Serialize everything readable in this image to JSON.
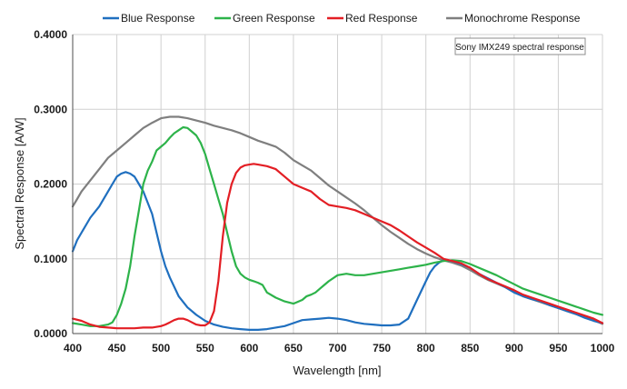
{
  "chart_data": {
    "type": "line",
    "xlabel": "Wavelength [nm]",
    "ylabel": "Spectral Response [A/W]",
    "xlim": [
      400,
      1000
    ],
    "ylim": [
      0,
      0.4
    ],
    "x_ticks": [
      "400",
      "450",
      "500",
      "550",
      "600",
      "650",
      "700",
      "750",
      "800",
      "850",
      "900",
      "950",
      "1000"
    ],
    "y_ticks": [
      "0.0000",
      "0.1000",
      "0.2000",
      "0.3000",
      "0.4000"
    ],
    "grid": true,
    "legend_position": "top",
    "annotation": "Sony IMX249 spectral response",
    "series": [
      {
        "name": "Blue Response",
        "color": "#1f6fbf",
        "x": [
          400,
          405,
          410,
          420,
          430,
          440,
          445,
          450,
          455,
          460,
          465,
          470,
          475,
          480,
          485,
          490,
          495,
          500,
          505,
          510,
          520,
          530,
          540,
          550,
          560,
          570,
          580,
          590,
          600,
          610,
          620,
          630,
          640,
          650,
          660,
          670,
          680,
          690,
          700,
          710,
          720,
          730,
          740,
          750,
          760,
          770,
          780,
          790,
          800,
          805,
          810,
          815,
          820,
          830,
          840,
          850,
          860,
          870,
          880,
          890,
          900,
          910,
          920,
          930,
          940,
          950,
          960,
          970,
          980,
          990,
          1000
        ],
        "y": [
          0.11,
          0.125,
          0.135,
          0.155,
          0.17,
          0.19,
          0.2,
          0.21,
          0.214,
          0.216,
          0.214,
          0.21,
          0.2,
          0.19,
          0.175,
          0.16,
          0.135,
          0.11,
          0.09,
          0.075,
          0.05,
          0.035,
          0.025,
          0.017,
          0.012,
          0.009,
          0.007,
          0.006,
          0.005,
          0.005,
          0.006,
          0.008,
          0.01,
          0.014,
          0.018,
          0.019,
          0.02,
          0.021,
          0.02,
          0.018,
          0.015,
          0.013,
          0.012,
          0.011,
          0.011,
          0.012,
          0.02,
          0.045,
          0.07,
          0.082,
          0.09,
          0.095,
          0.098,
          0.097,
          0.093,
          0.088,
          0.08,
          0.074,
          0.068,
          0.062,
          0.055,
          0.05,
          0.046,
          0.043,
          0.038,
          0.034,
          0.03,
          0.026,
          0.021,
          0.017,
          0.014
        ]
      },
      {
        "name": "Green Response",
        "color": "#2db34a",
        "x": [
          400,
          410,
          420,
          430,
          440,
          445,
          450,
          455,
          460,
          465,
          470,
          475,
          480,
          485,
          490,
          495,
          500,
          505,
          510,
          515,
          520,
          525,
          530,
          535,
          540,
          545,
          550,
          555,
          560,
          565,
          570,
          575,
          580,
          585,
          590,
          595,
          600,
          605,
          610,
          615,
          620,
          630,
          640,
          650,
          660,
          665,
          670,
          675,
          680,
          685,
          690,
          700,
          710,
          720,
          730,
          740,
          750,
          760,
          770,
          780,
          790,
          800,
          810,
          820,
          830,
          840,
          850,
          860,
          870,
          880,
          890,
          900,
          910,
          920,
          930,
          940,
          950,
          960,
          970,
          980,
          990,
          1000
        ],
        "y": [
          0.014,
          0.012,
          0.01,
          0.01,
          0.012,
          0.015,
          0.025,
          0.04,
          0.06,
          0.09,
          0.13,
          0.165,
          0.2,
          0.218,
          0.23,
          0.245,
          0.25,
          0.255,
          0.262,
          0.268,
          0.272,
          0.276,
          0.275,
          0.27,
          0.265,
          0.255,
          0.24,
          0.22,
          0.2,
          0.18,
          0.16,
          0.135,
          0.11,
          0.09,
          0.08,
          0.075,
          0.072,
          0.07,
          0.068,
          0.065,
          0.055,
          0.048,
          0.043,
          0.04,
          0.045,
          0.05,
          0.052,
          0.055,
          0.06,
          0.065,
          0.07,
          0.078,
          0.08,
          0.078,
          0.078,
          0.08,
          0.082,
          0.084,
          0.086,
          0.088,
          0.09,
          0.092,
          0.095,
          0.097,
          0.098,
          0.097,
          0.093,
          0.088,
          0.083,
          0.078,
          0.072,
          0.066,
          0.06,
          0.056,
          0.052,
          0.048,
          0.044,
          0.04,
          0.036,
          0.032,
          0.028,
          0.025
        ]
      },
      {
        "name": "Red Response",
        "color": "#e31e24",
        "x": [
          400,
          410,
          420,
          430,
          440,
          450,
          460,
          470,
          480,
          490,
          500,
          505,
          510,
          515,
          520,
          525,
          530,
          535,
          540,
          545,
          550,
          555,
          560,
          565,
          570,
          575,
          580,
          585,
          590,
          595,
          600,
          605,
          610,
          620,
          630,
          640,
          650,
          660,
          670,
          680,
          690,
          700,
          710,
          720,
          730,
          740,
          750,
          760,
          770,
          780,
          790,
          800,
          810,
          820,
          830,
          840,
          850,
          860,
          870,
          880,
          890,
          900,
          910,
          920,
          930,
          940,
          950,
          960,
          970,
          980,
          990,
          1000
        ],
        "y": [
          0.02,
          0.017,
          0.012,
          0.009,
          0.008,
          0.007,
          0.007,
          0.007,
          0.008,
          0.008,
          0.01,
          0.012,
          0.015,
          0.018,
          0.02,
          0.02,
          0.018,
          0.015,
          0.012,
          0.011,
          0.011,
          0.015,
          0.03,
          0.07,
          0.13,
          0.175,
          0.2,
          0.215,
          0.222,
          0.225,
          0.226,
          0.227,
          0.226,
          0.224,
          0.22,
          0.21,
          0.2,
          0.195,
          0.19,
          0.18,
          0.172,
          0.17,
          0.168,
          0.165,
          0.16,
          0.155,
          0.15,
          0.145,
          0.138,
          0.13,
          0.122,
          0.115,
          0.108,
          0.1,
          0.097,
          0.094,
          0.088,
          0.08,
          0.073,
          0.068,
          0.063,
          0.058,
          0.052,
          0.048,
          0.044,
          0.04,
          0.036,
          0.032,
          0.028,
          0.024,
          0.02,
          0.014
        ]
      },
      {
        "name": "Monochrome Response",
        "color": "#7f7f7f",
        "x": [
          400,
          405,
          410,
          420,
          430,
          440,
          450,
          460,
          470,
          480,
          490,
          500,
          510,
          520,
          530,
          540,
          550,
          560,
          570,
          580,
          590,
          600,
          610,
          620,
          630,
          640,
          650,
          660,
          670,
          680,
          690,
          700,
          710,
          720,
          730,
          740,
          750,
          760,
          770,
          780,
          790,
          800,
          810,
          820,
          830,
          840,
          850,
          860,
          870,
          880,
          890,
          900,
          910,
          920,
          930,
          940,
          950,
          960,
          970,
          980,
          990,
          1000
        ],
        "y": [
          0.17,
          0.18,
          0.19,
          0.205,
          0.22,
          0.235,
          0.245,
          0.255,
          0.265,
          0.275,
          0.282,
          0.288,
          0.29,
          0.29,
          0.288,
          0.285,
          0.282,
          0.278,
          0.275,
          0.272,
          0.268,
          0.263,
          0.258,
          0.254,
          0.25,
          0.242,
          0.232,
          0.225,
          0.218,
          0.208,
          0.198,
          0.19,
          0.182,
          0.174,
          0.165,
          0.155,
          0.145,
          0.136,
          0.128,
          0.12,
          0.113,
          0.107,
          0.102,
          0.098,
          0.095,
          0.091,
          0.085,
          0.078,
          0.072,
          0.067,
          0.062,
          0.056,
          0.05,
          0.046,
          0.042,
          0.038,
          0.034,
          0.03,
          0.026,
          0.022,
          0.018,
          0.013
        ]
      }
    ]
  }
}
